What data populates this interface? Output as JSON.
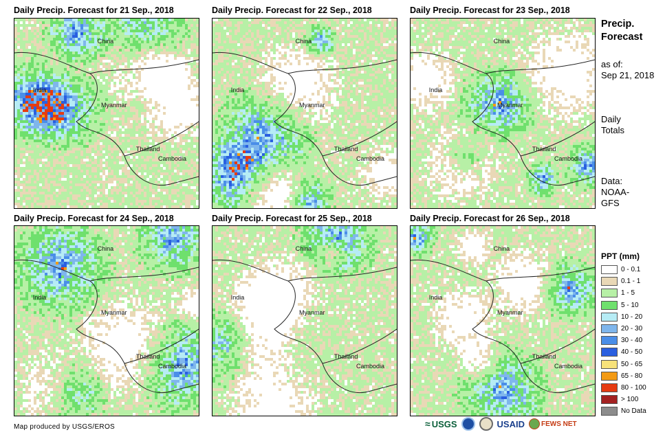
{
  "panels": [
    {
      "title": "Daily Precip. Forecast for 21 Sep., 2018",
      "china": "China",
      "india": "India",
      "myanmar": "Myanmar",
      "thailand": "Thailand",
      "cambodia": "Cambodia"
    },
    {
      "title": "Daily Precip. Forecast for 22 Sep., 2018",
      "china": "China",
      "india": "India",
      "myanmar": "Myanmar",
      "thailand": "Thailand",
      "cambodia": "Cambodia"
    },
    {
      "title": "Daily Precip. Forecast for 23 Sep., 2018",
      "china": "China",
      "india": "India",
      "myanmar": "Myanmar",
      "thailand": "Thailand",
      "cambodia": "Cambodia"
    },
    {
      "title": "Daily Precip. Forecast for 24 Sep., 2018",
      "china": "China",
      "india": "India",
      "myanmar": "Myanmar",
      "thailand": "Thailand",
      "cambodia": "Cambodia"
    },
    {
      "title": "Daily Precip. Forecast for 25 Sep., 2018",
      "china": "China",
      "india": "India",
      "myanmar": "Myanmar",
      "thailand": "Thailand",
      "cambodia": "Cambodia"
    },
    {
      "title": "Daily Precip. Forecast for 26 Sep., 2018",
      "china": "China",
      "india": "India",
      "myanmar": "Myanmar",
      "thailand": "Thailand",
      "cambodia": "Cambodia"
    }
  ],
  "sidebar": {
    "title_line1": "Precip.",
    "title_line2": "Forecast",
    "asof_label": "as of:",
    "asof_date": "Sep 21, 2018",
    "totals_line1": "Daily",
    "totals_line2": "Totals",
    "data_label": "Data:",
    "data_line1": "NOAA-",
    "data_line2": "GFS"
  },
  "legend": {
    "title": "PPT (mm)",
    "items": [
      {
        "label": "0 - 0.1",
        "color": "#ffffff"
      },
      {
        "label": "0.1 - 1",
        "color": "#e9d8b6"
      },
      {
        "label": "1 - 5",
        "color": "#b7f0a6"
      },
      {
        "label": "5 - 10",
        "color": "#6fe06d"
      },
      {
        "label": "10 - 20",
        "color": "#b6ecf5"
      },
      {
        "label": "20 - 30",
        "color": "#7fb6ec"
      },
      {
        "label": "30 - 40",
        "color": "#4a8ee8"
      },
      {
        "label": "40 - 50",
        "color": "#2a5fe0"
      },
      {
        "label": "50 - 65",
        "color": "#f7e27a"
      },
      {
        "label": "65 - 80",
        "color": "#f39a14"
      },
      {
        "label": "80 - 100",
        "color": "#e63b12"
      },
      {
        "label": "> 100",
        "color": "#a32121"
      },
      {
        "label": "No Data",
        "color": "#8c8c8c"
      }
    ]
  },
  "footer": {
    "credit": "Map produced by USGS/EROS",
    "logo_usgs": "USGS",
    "logo_usaid": "USAID",
    "logo_fews": "FEWS NET"
  }
}
